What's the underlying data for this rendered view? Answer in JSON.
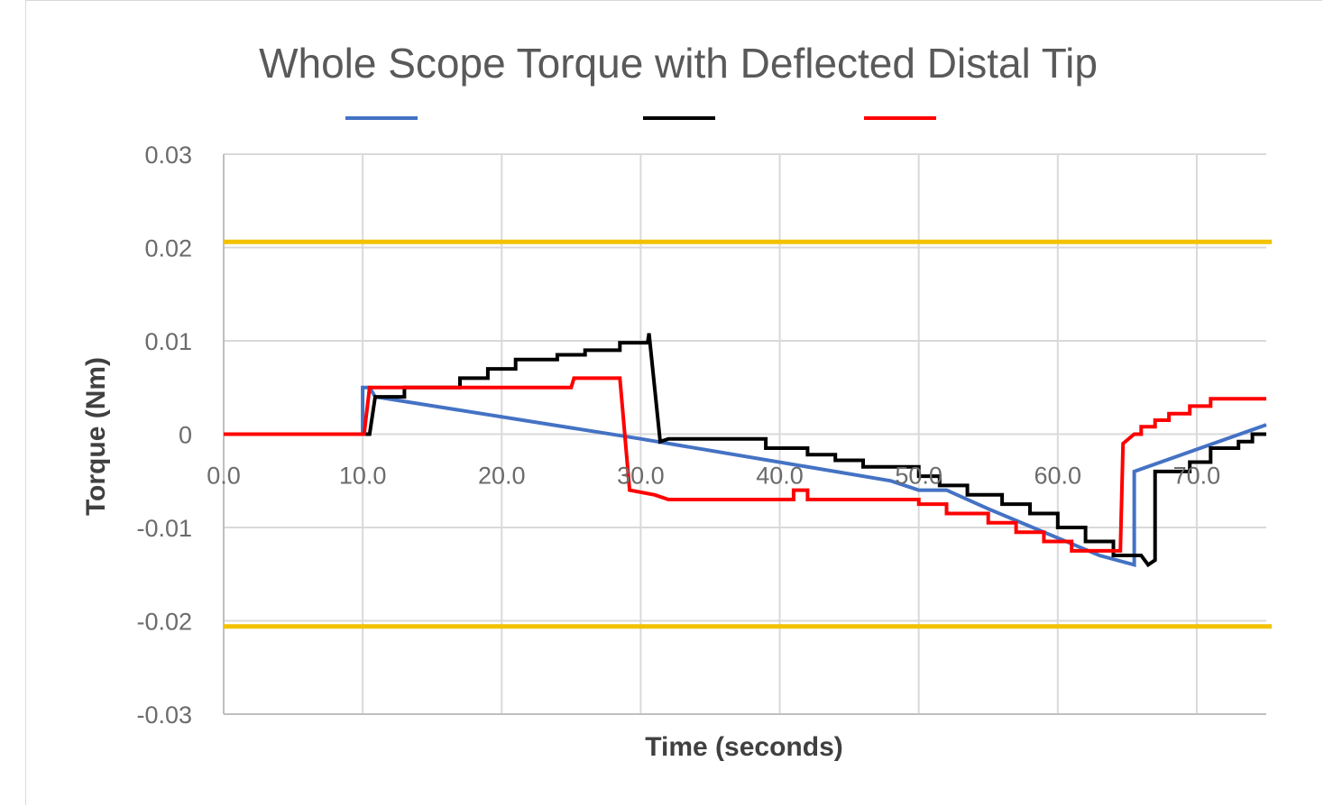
{
  "chart_data": {
    "type": "line",
    "title": "Whole Scope Torque with Deflected Distal Tip",
    "xlabel": "Time (seconds)",
    "ylabel": "Torque (Nm)",
    "xlim": [
      0,
      75
    ],
    "ylim": [
      -0.03,
      0.03
    ],
    "x_ticks": [
      "0.0",
      "10.0",
      "20.0",
      "30.0",
      "40.0",
      "50.0",
      "60.0",
      "70.0"
    ],
    "y_ticks": [
      "0.03",
      "0.02",
      "0.01",
      "0",
      "-0.01",
      "-0.02",
      "-0.03"
    ],
    "grid": true,
    "legend_position": "top",
    "limit_lines": [
      {
        "y": 0.0206,
        "color": "#f2c200"
      },
      {
        "y": -0.0206,
        "color": "#f2c200"
      }
    ],
    "series": [
      {
        "color": "#4472c4",
        "points": [
          [
            0,
            0
          ],
          [
            10,
            0
          ],
          [
            10,
            0.005
          ],
          [
            10.5,
            0.005
          ],
          [
            10.9,
            0.004
          ],
          [
            30,
            -0.0005
          ],
          [
            48,
            -0.005
          ],
          [
            50,
            -0.006
          ],
          [
            52,
            -0.006
          ],
          [
            55,
            -0.008
          ],
          [
            63,
            -0.013
          ],
          [
            65.5,
            -0.014
          ],
          [
            65.5,
            -0.004
          ],
          [
            75,
            0.001
          ]
        ]
      },
      {
        "color": "#000000",
        "points": [
          [
            0,
            0
          ],
          [
            10.5,
            0
          ],
          [
            10.9,
            0.004
          ],
          [
            13,
            0.004
          ],
          [
            13,
            0.005
          ],
          [
            17,
            0.005
          ],
          [
            17,
            0.006
          ],
          [
            19,
            0.006
          ],
          [
            19,
            0.007
          ],
          [
            21,
            0.007
          ],
          [
            21,
            0.008
          ],
          [
            24,
            0.008
          ],
          [
            24,
            0.0085
          ],
          [
            26,
            0.0085
          ],
          [
            26,
            0.009
          ],
          [
            28.5,
            0.009
          ],
          [
            28.5,
            0.0098
          ],
          [
            30.5,
            0.0098
          ],
          [
            30.6,
            0.0108
          ],
          [
            31.4,
            -0.0008
          ],
          [
            32,
            -0.0005
          ],
          [
            39,
            -0.0005
          ],
          [
            39,
            -0.0015
          ],
          [
            42,
            -0.0015
          ],
          [
            42,
            -0.0022
          ],
          [
            44,
            -0.0022
          ],
          [
            44,
            -0.0028
          ],
          [
            46,
            -0.0028
          ],
          [
            46,
            -0.0035
          ],
          [
            50,
            -0.0035
          ],
          [
            50,
            -0.0045
          ],
          [
            51.5,
            -0.0045
          ],
          [
            51.5,
            -0.0055
          ],
          [
            53.5,
            -0.0055
          ],
          [
            53.5,
            -0.0065
          ],
          [
            56,
            -0.0065
          ],
          [
            56,
            -0.0075
          ],
          [
            58,
            -0.0075
          ],
          [
            58,
            -0.0085
          ],
          [
            60,
            -0.0085
          ],
          [
            60,
            -0.01
          ],
          [
            62,
            -0.01
          ],
          [
            62,
            -0.0115
          ],
          [
            64,
            -0.0115
          ],
          [
            64,
            -0.013
          ],
          [
            66,
            -0.013
          ],
          [
            66.5,
            -0.014
          ],
          [
            67,
            -0.0135
          ],
          [
            67,
            -0.004
          ],
          [
            69.5,
            -0.004
          ],
          [
            69.5,
            -0.003
          ],
          [
            71,
            -0.003
          ],
          [
            71,
            -0.0015
          ],
          [
            73,
            -0.0015
          ],
          [
            73,
            -0.0008
          ],
          [
            74,
            -0.0008
          ],
          [
            74,
            0
          ],
          [
            75,
            0
          ]
        ]
      },
      {
        "color": "#ff0000",
        "points": [
          [
            0,
            0
          ],
          [
            10.1,
            0
          ],
          [
            10.5,
            0.005
          ],
          [
            25,
            0.005
          ],
          [
            25.2,
            0.006
          ],
          [
            28.5,
            0.006
          ],
          [
            29.2,
            -0.006
          ],
          [
            31,
            -0.0065
          ],
          [
            32,
            -0.007
          ],
          [
            41,
            -0.007
          ],
          [
            41,
            -0.006
          ],
          [
            42,
            -0.006
          ],
          [
            42,
            -0.007
          ],
          [
            50,
            -0.007
          ],
          [
            50,
            -0.0075
          ],
          [
            52,
            -0.0075
          ],
          [
            52,
            -0.0085
          ],
          [
            55,
            -0.0085
          ],
          [
            55,
            -0.0095
          ],
          [
            57,
            -0.0095
          ],
          [
            57,
            -0.0105
          ],
          [
            59,
            -0.0105
          ],
          [
            59,
            -0.0115
          ],
          [
            61,
            -0.0115
          ],
          [
            61,
            -0.0125
          ],
          [
            64.5,
            -0.0125
          ],
          [
            64.7,
            -0.001
          ],
          [
            65.5,
            0
          ],
          [
            66,
            0
          ],
          [
            66,
            0.0008
          ],
          [
            67,
            0.0008
          ],
          [
            67,
            0.0015
          ],
          [
            68,
            0.0015
          ],
          [
            68,
            0.0022
          ],
          [
            69.5,
            0.0022
          ],
          [
            69.5,
            0.003
          ],
          [
            71,
            0.003
          ],
          [
            71,
            0.0038
          ],
          [
            75,
            0.0038
          ]
        ]
      }
    ]
  }
}
